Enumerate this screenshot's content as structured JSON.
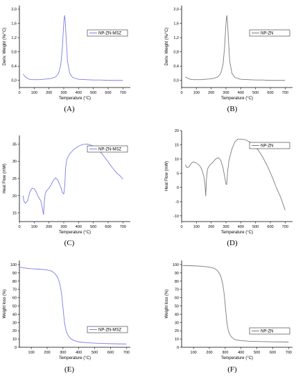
{
  "colors": {
    "blue": "#7b7be8",
    "gray": "#7a7a7a"
  },
  "chart_data": [
    {
      "panel": "(A)",
      "type": "line",
      "xlabel": "Temperature (°C)",
      "ylabel": "Deriv. Weight (%/°C)",
      "xlim": [
        0,
        750
      ],
      "ylim": [
        -0.2,
        2.1
      ],
      "xticks": [
        {
          "v": 0,
          "l": "0"
        },
        {
          "v": 100,
          "l": "100"
        },
        {
          "v": 200,
          "l": "200"
        },
        {
          "v": 300,
          "l": "300"
        },
        {
          "v": 400,
          "l": "400"
        },
        {
          "v": 500,
          "l": "500"
        },
        {
          "v": 600,
          "l": "600"
        },
        {
          "v": 700,
          "l": "700"
        }
      ],
      "yticks": [
        {
          "v": 0,
          "l": "0,0"
        },
        {
          "v": 0.4,
          "l": "0,4"
        },
        {
          "v": 0.8,
          "l": "0,8"
        },
        {
          "v": 1.2,
          "l": "1,2"
        },
        {
          "v": 1.6,
          "l": "1,6"
        },
        {
          "v": 2.0,
          "l": "2,0"
        }
      ],
      "legend": "NP-ZN-MSZ",
      "color": "blue",
      "x": [
        25,
        40,
        60,
        80,
        100,
        130,
        160,
        190,
        220,
        245,
        265,
        280,
        290,
        297,
        302,
        306,
        310,
        316,
        325,
        340,
        360,
        400,
        450,
        500,
        550,
        600,
        650,
        700
      ],
      "y": [
        0.18,
        0.1,
        0.04,
        0.02,
        0.02,
        0.02,
        0.03,
        0.04,
        0.06,
        0.1,
        0.2,
        0.45,
        0.9,
        1.4,
        1.72,
        1.82,
        1.65,
        1.2,
        0.55,
        0.2,
        0.08,
        0.03,
        0.02,
        0.01,
        0.01,
        0.0,
        0.0,
        0.0
      ]
    },
    {
      "panel": "(B)",
      "type": "line",
      "xlabel": "Temperature (°C)",
      "ylabel": "Deriv. Weight (%/°C)",
      "xlim": [
        0,
        750
      ],
      "ylim": [
        -0.2,
        2.1
      ],
      "xticks": [
        {
          "v": 0,
          "l": "0"
        },
        {
          "v": 100,
          "l": "100"
        },
        {
          "v": 200,
          "l": "200"
        },
        {
          "v": 300,
          "l": "300"
        },
        {
          "v": 400,
          "l": "400"
        },
        {
          "v": 500,
          "l": "500"
        },
        {
          "v": 600,
          "l": "600"
        },
        {
          "v": 700,
          "l": "700"
        }
      ],
      "yticks": [
        {
          "v": 0,
          "l": "0,0"
        },
        {
          "v": 0.4,
          "l": "0,4"
        },
        {
          "v": 0.8,
          "l": "0,8"
        },
        {
          "v": 1.2,
          "l": "1,2"
        },
        {
          "v": 1.6,
          "l": "1,6"
        },
        {
          "v": 2.0,
          "l": "2,0"
        }
      ],
      "legend": "NP-ZN",
      "color": "gray",
      "x": [
        25,
        40,
        60,
        80,
        100,
        130,
        160,
        190,
        220,
        245,
        265,
        280,
        290,
        297,
        302,
        306,
        310,
        316,
        325,
        340,
        360,
        400,
        450,
        500,
        550,
        600,
        650,
        700
      ],
      "y": [
        0.1,
        0.06,
        0.03,
        0.02,
        0.02,
        0.02,
        0.03,
        0.04,
        0.06,
        0.1,
        0.2,
        0.45,
        0.9,
        1.4,
        1.72,
        1.82,
        1.65,
        1.2,
        0.55,
        0.2,
        0.08,
        0.03,
        0.02,
        0.01,
        0.01,
        0.0,
        0.0,
        0.0
      ]
    },
    {
      "panel": "(C)",
      "type": "line",
      "xlabel": "Temperature (°C)",
      "ylabel": "Heat Flow (mW)",
      "xlim": [
        0,
        750
      ],
      "ylim": [
        12.5,
        37.5
      ],
      "xticks": [
        {
          "v": 0,
          "l": "0"
        },
        {
          "v": 100,
          "l": "100"
        },
        {
          "v": 200,
          "l": "200"
        },
        {
          "v": 300,
          "l": "300"
        },
        {
          "v": 400,
          "l": "400"
        },
        {
          "v": 500,
          "l": "500"
        },
        {
          "v": 600,
          "l": "600"
        },
        {
          "v": 700,
          "l": "700"
        }
      ],
      "yticks": [
        {
          "v": 15,
          "l": "15"
        },
        {
          "v": 20,
          "l": "20"
        },
        {
          "v": 25,
          "l": "25"
        },
        {
          "v": 30,
          "l": "30"
        },
        {
          "v": 35,
          "l": "35"
        }
      ],
      "legend": "NP-ZN-MSZ",
      "color": "blue",
      "x": [
        25,
        30,
        40,
        55,
        70,
        85,
        100,
        115,
        130,
        145,
        155,
        163,
        168,
        175,
        185,
        200,
        215,
        230,
        245,
        260,
        270,
        280,
        290,
        300,
        307,
        312,
        320,
        340,
        370,
        400,
        430,
        460,
        490,
        520,
        550,
        580,
        610,
        640,
        660,
        680,
        690,
        700
      ],
      "y": [
        20,
        18.5,
        17.8,
        18.5,
        21,
        22.2,
        22,
        21,
        19.5,
        18.5,
        16.5,
        14.5,
        18,
        20.8,
        21.5,
        22.2,
        23.2,
        24.5,
        25.2,
        24.5,
        23.5,
        22.5,
        21,
        20.5,
        23,
        28,
        30.5,
        32.2,
        33.5,
        34.4,
        34.9,
        35,
        34.6,
        33.8,
        32.6,
        31,
        29.2,
        27.5,
        26.5,
        25.8,
        25.3,
        24.8
      ]
    },
    {
      "panel": "(D)",
      "type": "line",
      "xlabel": "Temperature (°C)",
      "ylabel": "Heat Flow (mW)",
      "xlim": [
        0,
        750
      ],
      "ylim": [
        -12,
        20
      ],
      "xticks": [
        {
          "v": 0,
          "l": "0"
        },
        {
          "v": 100,
          "l": "100"
        },
        {
          "v": 200,
          "l": "200"
        },
        {
          "v": 300,
          "l": "300"
        },
        {
          "v": 400,
          "l": "400"
        },
        {
          "v": 500,
          "l": "500"
        },
        {
          "v": 600,
          "l": "600"
        },
        {
          "v": 700,
          "l": "700"
        }
      ],
      "yticks": [
        {
          "v": -10,
          "l": "-10"
        },
        {
          "v": -5,
          "l": "-5"
        },
        {
          "v": 0,
          "l": "0"
        },
        {
          "v": 5,
          "l": "5"
        },
        {
          "v": 10,
          "l": "10"
        },
        {
          "v": 15,
          "l": "15"
        },
        {
          "v": 20,
          "l": "20"
        }
      ],
      "legend": "NP-ZN",
      "color": "gray",
      "x": [
        25,
        35,
        50,
        65,
        80,
        100,
        120,
        135,
        150,
        158,
        163,
        168,
        175,
        190,
        210,
        230,
        250,
        265,
        280,
        290,
        300,
        305,
        310,
        320,
        340,
        360,
        380,
        400,
        430,
        460,
        490,
        520,
        550,
        580,
        610,
        640,
        670,
        690,
        700
      ],
      "y": [
        8,
        7,
        7.2,
        8.5,
        9,
        8.6,
        7.8,
        6.5,
        4,
        1,
        -3,
        3,
        6.5,
        7.8,
        8.8,
        10,
        10.5,
        9.5,
        7,
        4,
        1.2,
        1,
        5,
        9.5,
        13.5,
        16,
        17,
        17,
        16.8,
        16,
        14.8,
        13,
        10.5,
        7.5,
        4,
        0,
        -3.5,
        -6.5,
        -8
      ]
    },
    {
      "panel": "(E)",
      "type": "line",
      "xlabel": "Temperature (°C)",
      "ylabel": "Weight loss (%)",
      "xlim": [
        25,
        725
      ],
      "ylim": [
        0,
        105
      ],
      "xticks": [
        {
          "v": 100,
          "l": "100"
        },
        {
          "v": 200,
          "l": "200"
        },
        {
          "v": 300,
          "l": "300"
        },
        {
          "v": 400,
          "l": "400"
        },
        {
          "v": 500,
          "l": "500"
        },
        {
          "v": 600,
          "l": "600"
        },
        {
          "v": 700,
          "l": "700"
        }
      ],
      "yticks": [
        {
          "v": 0,
          "l": "0"
        },
        {
          "v": 10,
          "l": "10"
        },
        {
          "v": 20,
          "l": "20"
        },
        {
          "v": 30,
          "l": "30"
        },
        {
          "v": 40,
          "l": "40"
        },
        {
          "v": 50,
          "l": "50"
        },
        {
          "v": 60,
          "l": "60"
        },
        {
          "v": 70,
          "l": "70"
        },
        {
          "v": 80,
          "l": "80"
        },
        {
          "v": 90,
          "l": "90"
        },
        {
          "v": 100,
          "l": "100"
        }
      ],
      "legend": "NP-ZN-MSZ",
      "color": "blue",
      "x": [
        30,
        50,
        100,
        150,
        200,
        230,
        250,
        265,
        275,
        285,
        292,
        298,
        303,
        308,
        313,
        320,
        330,
        345,
        360,
        380,
        400,
        450,
        500,
        550,
        600,
        650,
        700
      ],
      "y": [
        97,
        96,
        95,
        94.5,
        93.5,
        92,
        89,
        85,
        80,
        72,
        63,
        52,
        42,
        33,
        26,
        20,
        15,
        11,
        9,
        7.5,
        6.5,
        5.5,
        5,
        4.6,
        4.3,
        4.1,
        4
      ]
    },
    {
      "panel": "(F)",
      "type": "line",
      "xlabel": "Temperature (°C)",
      "ylabel": "Weight loss (%)",
      "xlim": [
        25,
        725
      ],
      "ylim": [
        0,
        105
      ],
      "xticks": [
        {
          "v": 100,
          "l": "100"
        },
        {
          "v": 200,
          "l": "200"
        },
        {
          "v": 300,
          "l": "300"
        },
        {
          "v": 400,
          "l": "400"
        },
        {
          "v": 500,
          "l": "500"
        },
        {
          "v": 600,
          "l": "600"
        },
        {
          "v": 700,
          "l": "700"
        }
      ],
      "yticks": [
        {
          "v": 0,
          "l": "0"
        },
        {
          "v": 10,
          "l": "10"
        },
        {
          "v": 20,
          "l": "20"
        },
        {
          "v": 30,
          "l": "30"
        },
        {
          "v": 40,
          "l": "40"
        },
        {
          "v": 50,
          "l": "50"
        },
        {
          "v": 60,
          "l": "60"
        },
        {
          "v": 70,
          "l": "70"
        },
        {
          "v": 80,
          "l": "80"
        },
        {
          "v": 90,
          "l": "90"
        },
        {
          "v": 100,
          "l": "100"
        }
      ],
      "legend": "NP-ZN",
      "color": "gray",
      "x": [
        30,
        50,
        100,
        150,
        200,
        230,
        250,
        265,
        275,
        285,
        292,
        298,
        303,
        308,
        313,
        320,
        330,
        345,
        360,
        380,
        400,
        450,
        500,
        550,
        600,
        650,
        700
      ],
      "y": [
        99,
        98.8,
        98.5,
        98,
        97,
        95.5,
        93,
        89,
        84,
        76,
        67,
        56,
        45,
        35,
        27,
        20,
        15,
        11.5,
        9.5,
        8.5,
        8,
        7.3,
        7,
        6.8,
        6.6,
        6.5,
        6.3
      ]
    }
  ]
}
